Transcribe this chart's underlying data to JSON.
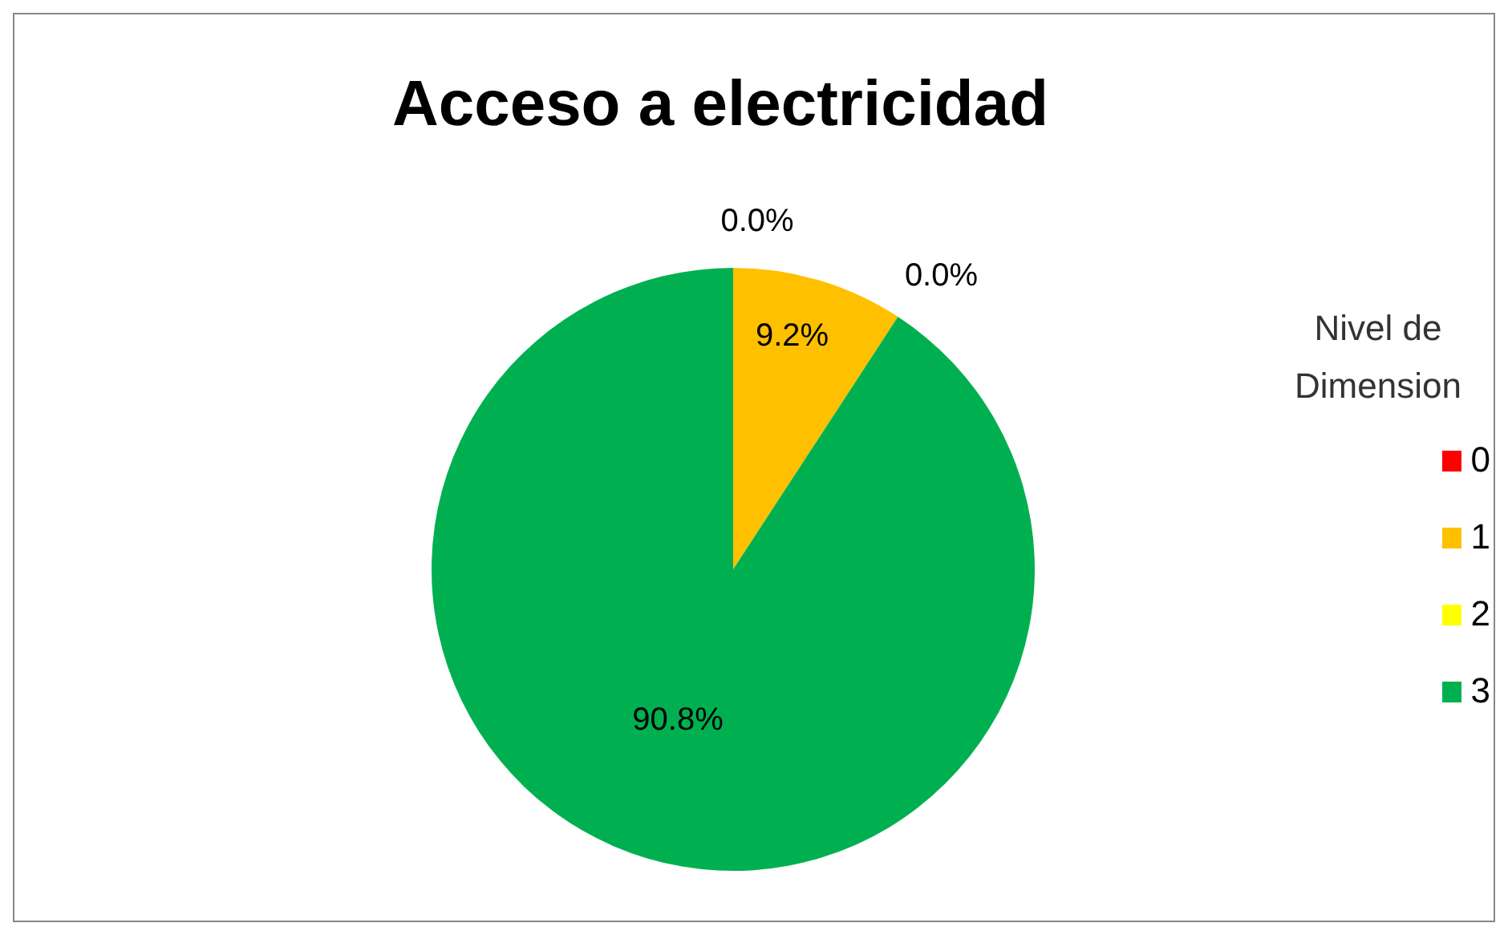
{
  "chart_data": {
    "type": "pie",
    "title": "Acceso a electricidad",
    "legend_title": "Nivel de Dimension",
    "legend": "right",
    "categories": [
      "0",
      "1",
      "2",
      "3"
    ],
    "values": [
      0,
      9.2,
      0,
      90.8
    ],
    "colors": [
      "#ff0000",
      "#ffc000",
      "#ffff00",
      "#00b050"
    ],
    "value_labels": [
      "0.0%",
      "9.2%",
      "0.0%",
      "90.8%"
    ]
  }
}
